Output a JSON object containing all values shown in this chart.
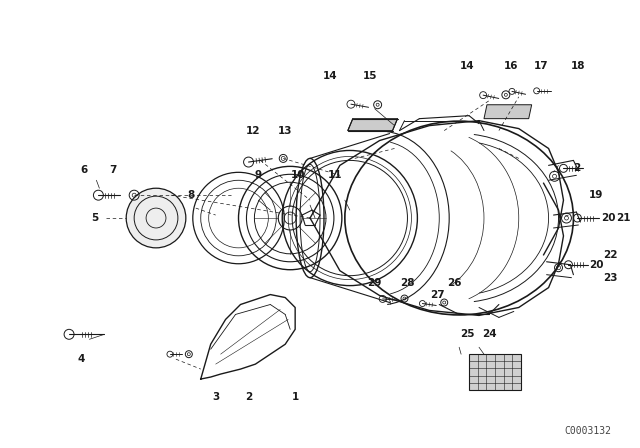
{
  "bg_color": "#ffffff",
  "line_color": "#1a1a1a",
  "fig_width": 6.4,
  "fig_height": 4.48,
  "dpi": 100,
  "watermark": "C0003132",
  "watermark_fontsize": 7
}
